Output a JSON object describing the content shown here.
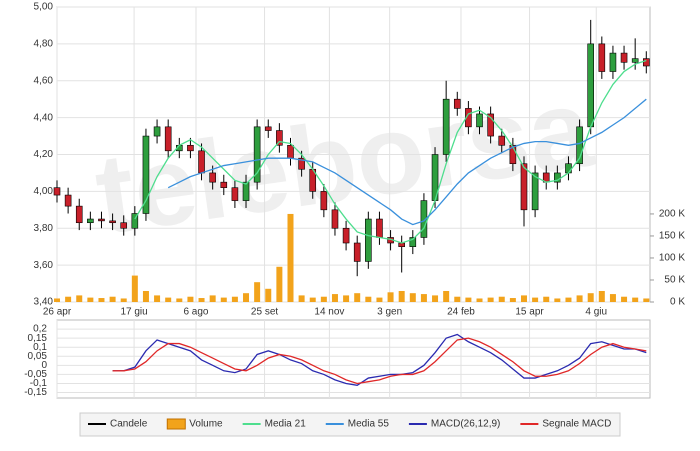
{
  "watermark": "teleborsa",
  "chart_data": [
    {
      "type": "candlestick",
      "x": [
        0,
        6,
        12,
        18,
        24,
        30,
        36,
        42,
        48,
        54,
        60,
        66,
        72,
        78,
        84,
        90,
        96,
        102,
        108,
        114,
        120,
        126,
        132,
        138,
        144,
        150,
        156,
        162,
        168,
        174,
        180,
        186,
        192,
        198,
        204,
        210,
        216,
        222,
        228,
        234,
        240,
        246,
        252,
        258,
        264,
        270,
        276,
        282,
        288,
        294,
        300,
        306,
        312,
        318
      ],
      "xlim": [
        0,
        320
      ],
      "xticks": [
        {
          "value": 0,
          "label": "26 apr"
        },
        {
          "value": 41.6,
          "label": "17 giu"
        },
        {
          "value": 75,
          "label": "6 ago"
        },
        {
          "value": 112,
          "label": "25 set"
        },
        {
          "value": 147,
          "label": "14 nov"
        },
        {
          "value": 179.5,
          "label": "3 gen"
        },
        {
          "value": 218,
          "label": "24 feb"
        },
        {
          "value": 255,
          "label": "15 apr"
        },
        {
          "value": 291,
          "label": "4 giu"
        }
      ],
      "ylim": [
        3.4,
        5.0
      ],
      "yticks": [
        {
          "value": 3.4,
          "label": "3,40"
        },
        {
          "value": 3.6,
          "label": "3,60"
        },
        {
          "value": 3.8,
          "label": "3,80"
        },
        {
          "value": 4.0,
          "label": "4,00"
        },
        {
          "value": 4.2,
          "label": "4,20"
        },
        {
          "value": 4.4,
          "label": "4,40"
        },
        {
          "value": 4.6,
          "label": "4,60"
        },
        {
          "value": 4.8,
          "label": "4,80"
        },
        {
          "value": 5.0,
          "label": "5,00"
        }
      ],
      "y2lim": [
        0,
        670000
      ],
      "y2ticks": [
        {
          "value": 0,
          "label": "0 K"
        },
        {
          "value": 50000,
          "label": "50 K"
        },
        {
          "value": 100000,
          "label": "100 K"
        },
        {
          "value": 150000,
          "label": "150 K"
        },
        {
          "value": 200000,
          "label": "200 K"
        }
      ],
      "grid": true,
      "up_color": "#2e9e3e",
      "down_color": "#c8202a",
      "series": [
        {
          "name": "Candele",
          "color": "#000000",
          "open": [
            4.02,
            3.98,
            3.92,
            3.83,
            3.85,
            3.84,
            3.83,
            3.8,
            3.88,
            4.3,
            4.35,
            4.22,
            4.25,
            4.22,
            4.1,
            4.05,
            4.02,
            3.95,
            4.05,
            4.35,
            4.33,
            4.25,
            4.18,
            4.12,
            4.0,
            3.9,
            3.8,
            3.72,
            3.62,
            3.85,
            3.75,
            3.72,
            3.7,
            3.75,
            3.95,
            4.2,
            4.5,
            4.45,
            4.35,
            4.42,
            4.3,
            4.25,
            4.15,
            3.9,
            4.1,
            4.05,
            4.1,
            4.15,
            4.35,
            4.8,
            4.65,
            4.75,
            4.7,
            4.72
          ],
          "high": [
            4.06,
            4.02,
            3.96,
            3.89,
            3.89,
            3.88,
            3.87,
            3.92,
            4.34,
            4.39,
            4.39,
            4.29,
            4.29,
            4.26,
            4.14,
            4.09,
            4.06,
            4.09,
            4.39,
            4.39,
            4.37,
            4.29,
            4.22,
            4.16,
            4.04,
            3.94,
            3.84,
            3.76,
            3.89,
            3.89,
            3.79,
            3.76,
            3.79,
            3.99,
            4.24,
            4.6,
            4.54,
            4.49,
            4.46,
            4.46,
            4.34,
            4.29,
            4.19,
            4.14,
            4.14,
            4.14,
            4.19,
            4.39,
            4.93,
            4.84,
            4.79,
            4.79,
            4.83,
            4.76
          ],
          "low": [
            3.94,
            3.88,
            3.79,
            3.79,
            3.8,
            3.79,
            3.76,
            3.76,
            3.84,
            4.26,
            4.18,
            4.18,
            4.18,
            4.06,
            4.01,
            3.98,
            3.91,
            3.91,
            4.01,
            4.29,
            4.21,
            4.14,
            4.08,
            3.96,
            3.86,
            3.76,
            3.68,
            3.54,
            3.58,
            3.71,
            3.68,
            3.56,
            3.66,
            3.71,
            3.91,
            4.16,
            4.41,
            4.31,
            4.31,
            4.26,
            4.21,
            4.11,
            3.81,
            3.86,
            4.01,
            4.01,
            4.06,
            4.11,
            4.31,
            4.61,
            4.61,
            4.66,
            4.66,
            4.64
          ],
          "close": [
            3.98,
            3.92,
            3.83,
            3.85,
            3.84,
            3.83,
            3.8,
            3.88,
            4.3,
            4.35,
            4.22,
            4.25,
            4.22,
            4.1,
            4.05,
            4.02,
            3.95,
            4.05,
            4.35,
            4.33,
            4.25,
            4.18,
            4.12,
            4.0,
            3.9,
            3.8,
            3.72,
            3.62,
            3.85,
            3.75,
            3.72,
            3.7,
            3.75,
            3.95,
            4.2,
            4.5,
            4.45,
            4.35,
            4.42,
            4.3,
            4.25,
            4.15,
            3.9,
            4.1,
            4.05,
            4.1,
            4.15,
            4.35,
            4.8,
            4.65,
            4.75,
            4.7,
            4.72,
            4.68
          ]
        },
        {
          "name": "Volume",
          "color": "#f2a31b",
          "axis": "y2",
          "values": [
            8000,
            12000,
            15000,
            10000,
            9000,
            12000,
            8000,
            60000,
            25000,
            15000,
            10000,
            8000,
            12000,
            9000,
            15000,
            10000,
            12000,
            20000,
            45000,
            30000,
            80000,
            200000,
            15000,
            10000,
            12000,
            18000,
            15000,
            20000,
            12000,
            10000,
            22000,
            25000,
            20000,
            18000,
            15000,
            25000,
            12000,
            10000,
            8000,
            10000,
            12000,
            9000,
            15000,
            10000,
            12000,
            8000,
            10000,
            15000,
            20000,
            25000,
            18000,
            12000,
            10000,
            8000
          ]
        },
        {
          "name": "Media 21",
          "color": "#4ede8e",
          "values": [
            null,
            null,
            null,
            null,
            null,
            null,
            null,
            3.85,
            3.95,
            4.08,
            4.18,
            4.25,
            4.28,
            4.24,
            4.18,
            4.12,
            4.06,
            4.04,
            4.1,
            4.2,
            4.27,
            4.26,
            4.2,
            4.12,
            4.03,
            3.93,
            3.85,
            3.78,
            3.76,
            3.75,
            3.74,
            3.72,
            3.74,
            3.8,
            3.95,
            4.15,
            4.32,
            4.42,
            4.44,
            4.4,
            4.33,
            4.24,
            4.13,
            4.08,
            4.05,
            4.06,
            4.1,
            4.18,
            4.35,
            4.48,
            4.58,
            4.65,
            4.69,
            4.71
          ]
        },
        {
          "name": "Media 55",
          "color": "#3a90dc",
          "values": [
            null,
            null,
            null,
            null,
            null,
            null,
            null,
            null,
            null,
            null,
            4.02,
            4.05,
            4.08,
            4.1,
            4.12,
            4.14,
            4.15,
            4.16,
            4.17,
            4.18,
            4.18,
            4.18,
            4.17,
            4.16,
            4.13,
            4.1,
            4.06,
            4.02,
            3.98,
            3.94,
            3.9,
            3.85,
            3.82,
            3.84,
            3.9,
            3.97,
            4.04,
            4.1,
            4.14,
            4.18,
            4.21,
            4.24,
            4.26,
            4.27,
            4.27,
            4.26,
            4.25,
            4.26,
            4.29,
            4.32,
            4.36,
            4.4,
            4.45,
            4.5
          ]
        }
      ]
    },
    {
      "type": "line",
      "x": [
        0,
        6,
        12,
        18,
        24,
        30,
        36,
        42,
        48,
        54,
        60,
        66,
        72,
        78,
        84,
        90,
        96,
        102,
        108,
        114,
        120,
        126,
        132,
        138,
        144,
        150,
        156,
        162,
        168,
        174,
        180,
        186,
        192,
        198,
        204,
        210,
        216,
        222,
        228,
        234,
        240,
        246,
        252,
        258,
        264,
        270,
        276,
        282,
        288,
        294,
        300,
        306,
        312,
        318
      ],
      "xlim": [
        0,
        320
      ],
      "ylim": [
        -0.18,
        0.25
      ],
      "yticks": [
        {
          "value": 0.2,
          "label": "0,2"
        },
        {
          "value": 0.15,
          "label": "0,15"
        },
        {
          "value": 0.1,
          "label": "0,1"
        },
        {
          "value": 0.05,
          "label": "0,05"
        },
        0,
        {
          "value": -0.05,
          "label": "-0,05"
        },
        {
          "value": -0.1,
          "label": "-0,1"
        },
        {
          "value": -0.15,
          "label": "-0,15"
        }
      ],
      "grid": true,
      "series": [
        {
          "name": "MACD(26,12,9)",
          "color": "#2b2bb0",
          "values": [
            null,
            null,
            null,
            null,
            null,
            -0.03,
            -0.03,
            -0.01,
            0.08,
            0.14,
            0.12,
            0.1,
            0.08,
            0.03,
            0.0,
            -0.03,
            -0.04,
            -0.02,
            0.06,
            0.08,
            0.06,
            0.03,
            0.01,
            -0.03,
            -0.05,
            -0.08,
            -0.1,
            -0.11,
            -0.07,
            -0.06,
            -0.05,
            -0.05,
            -0.04,
            0.0,
            0.07,
            0.15,
            0.17,
            0.13,
            0.1,
            0.07,
            0.03,
            -0.02,
            -0.07,
            -0.07,
            -0.05,
            -0.03,
            0.0,
            0.04,
            0.12,
            0.13,
            0.11,
            0.09,
            0.09,
            0.07
          ]
        },
        {
          "name": "Segnale MACD",
          "color": "#e02828",
          "values": [
            null,
            null,
            null,
            null,
            null,
            -0.03,
            -0.03,
            -0.02,
            0.02,
            0.08,
            0.12,
            0.12,
            0.1,
            0.07,
            0.04,
            0.01,
            -0.02,
            -0.03,
            0.0,
            0.04,
            0.06,
            0.05,
            0.03,
            0.0,
            -0.03,
            -0.05,
            -0.08,
            -0.1,
            -0.09,
            -0.08,
            -0.06,
            -0.05,
            -0.05,
            -0.03,
            0.02,
            0.08,
            0.14,
            0.15,
            0.13,
            0.1,
            0.06,
            0.02,
            -0.03,
            -0.06,
            -0.06,
            -0.05,
            -0.03,
            0.01,
            0.06,
            0.1,
            0.12,
            0.1,
            0.09,
            0.08
          ]
        }
      ]
    }
  ]
}
